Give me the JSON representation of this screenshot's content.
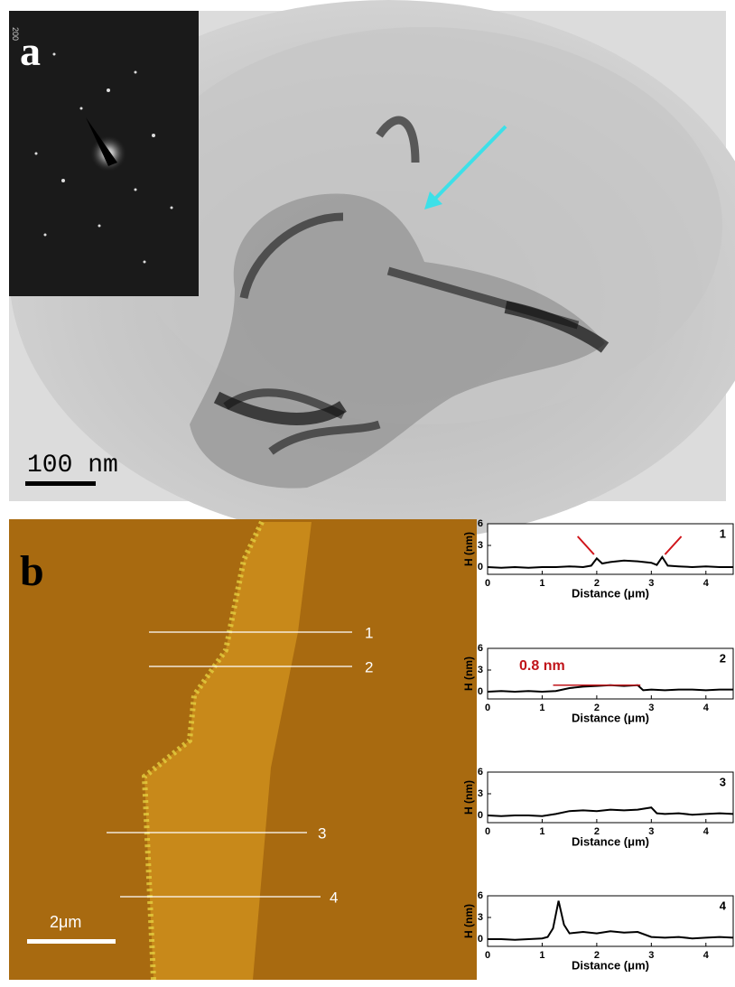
{
  "panels": {
    "a": {
      "label": "a",
      "inset_label": "200",
      "scale_bar": "100 nm"
    },
    "b": {
      "label": "b",
      "scale_bar": "2μm",
      "line_labels": [
        "1",
        "2",
        "3",
        "4"
      ]
    }
  },
  "chart_data": [
    {
      "type": "line",
      "panel_number": "1",
      "xlabel": "Distance (μm)",
      "ylabel": "H (nm)",
      "x": [
        0,
        0.25,
        0.5,
        0.75,
        1,
        1.25,
        1.5,
        1.75,
        1.9,
        2.0,
        2.1,
        2.25,
        2.5,
        2.75,
        3.0,
        3.1,
        3.2,
        3.3,
        3.5,
        3.75,
        4,
        4.25,
        4.5
      ],
      "values": [
        0,
        -0.1,
        0,
        -0.1,
        0,
        0,
        0.1,
        0,
        0.2,
        1.2,
        0.5,
        0.7,
        0.9,
        0.8,
        0.6,
        0.3,
        1.4,
        0.2,
        0.1,
        0,
        0.1,
        0,
        0
      ],
      "color": "#000000",
      "xlim": [
        0,
        4.5
      ],
      "ylim": [
        -1,
        6
      ],
      "xticks": [
        0,
        1,
        2,
        3,
        4
      ],
      "yticks": [
        0,
        3,
        6
      ]
    },
    {
      "type": "line",
      "panel_number": "2",
      "xlabel": "Distance (μm)",
      "ylabel": "H (nm)",
      "annotation": "0.8 nm",
      "x": [
        0,
        0.25,
        0.5,
        0.75,
        1,
        1.25,
        1.5,
        1.75,
        2.0,
        2.25,
        2.5,
        2.75,
        2.85,
        3.0,
        3.25,
        3.5,
        3.75,
        4,
        4.25,
        4.5
      ],
      "values": [
        0,
        0.1,
        0,
        0.1,
        0,
        0.1,
        0.5,
        0.7,
        0.8,
        0.9,
        0.8,
        0.9,
        0.2,
        0.3,
        0.2,
        0.3,
        0.3,
        0.2,
        0.3,
        0.3
      ],
      "color": "#000000",
      "xlim": [
        0,
        4.5
      ],
      "ylim": [
        -1,
        6
      ],
      "xticks": [
        0,
        1,
        2,
        3,
        4
      ],
      "yticks": [
        0,
        3,
        6
      ]
    },
    {
      "type": "line",
      "panel_number": "3",
      "xlabel": "Distance (μm)",
      "ylabel": "H (nm)",
      "x": [
        0,
        0.25,
        0.5,
        0.75,
        1,
        1.25,
        1.5,
        1.75,
        2.0,
        2.25,
        2.5,
        2.75,
        3.0,
        3.1,
        3.25,
        3.5,
        3.75,
        4,
        4.25,
        4.5
      ],
      "values": [
        0,
        -0.1,
        0,
        0,
        -0.1,
        0.2,
        0.6,
        0.7,
        0.6,
        0.8,
        0.7,
        0.8,
        1.1,
        0.3,
        0.2,
        0.3,
        0.1,
        0.2,
        0.3,
        0.2
      ],
      "color": "#000000",
      "xlim": [
        0,
        4.5
      ],
      "ylim": [
        -1,
        6
      ],
      "xticks": [
        0,
        1,
        2,
        3,
        4
      ],
      "yticks": [
        0,
        3,
        6
      ]
    },
    {
      "type": "line",
      "panel_number": "4",
      "xlabel": "Distance (μm)",
      "ylabel": "H (nm)",
      "x": [
        0,
        0.25,
        0.5,
        0.75,
        1,
        1.1,
        1.2,
        1.3,
        1.4,
        1.5,
        1.75,
        2.0,
        2.25,
        2.5,
        2.75,
        3.0,
        3.25,
        3.5,
        3.75,
        4,
        4.25,
        4.5
      ],
      "values": [
        0,
        0,
        -0.1,
        0,
        0.1,
        0.3,
        1.5,
        5.3,
        2.0,
        0.8,
        1.0,
        0.8,
        1.1,
        0.9,
        1.0,
        0.3,
        0.2,
        0.3,
        0.1,
        0.2,
        0.3,
        0.2
      ],
      "color": "#000000",
      "xlim": [
        0,
        4.5
      ],
      "ylim": [
        -1,
        6
      ],
      "xticks": [
        0,
        1,
        2,
        3,
        4
      ],
      "yticks": [
        0,
        3,
        6
      ]
    }
  ]
}
